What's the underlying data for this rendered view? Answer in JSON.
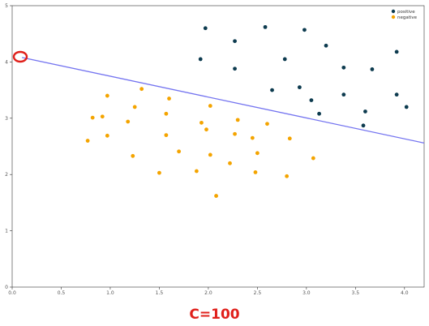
{
  "caption": "C=100",
  "chart_data": {
    "type": "scatter",
    "xlabel": "",
    "ylabel": "",
    "xlim": [
      0,
      4.2
    ],
    "ylim": [
      0,
      5
    ],
    "xticks": [
      "0.0",
      "0.5",
      "1.0",
      "1.5",
      "2.0",
      "2.5",
      "3.0",
      "3.5",
      "4.0"
    ],
    "yticks": [
      "0",
      "1",
      "2",
      "3",
      "4",
      "5"
    ],
    "legend_position": "top-right",
    "series": [
      {
        "name": "positive",
        "color": "#0d3b4f",
        "points": [
          [
            1.97,
            4.6
          ],
          [
            2.58,
            4.62
          ],
          [
            2.98,
            4.57
          ],
          [
            2.27,
            4.37
          ],
          [
            3.2,
            4.29
          ],
          [
            3.92,
            4.18
          ],
          [
            1.92,
            4.05
          ],
          [
            2.78,
            4.05
          ],
          [
            2.27,
            3.88
          ],
          [
            3.38,
            3.9
          ],
          [
            3.67,
            3.87
          ],
          [
            2.65,
            3.5
          ],
          [
            2.93,
            3.55
          ],
          [
            3.38,
            3.42
          ],
          [
            3.92,
            3.42
          ],
          [
            3.05,
            3.32
          ],
          [
            4.02,
            3.2
          ],
          [
            3.6,
            3.12
          ],
          [
            3.13,
            3.08
          ],
          [
            3.58,
            2.87
          ]
        ]
      },
      {
        "name": "negative",
        "color": "#f4a400",
        "points": [
          [
            1.32,
            3.52
          ],
          [
            0.97,
            3.4
          ],
          [
            1.6,
            3.35
          ],
          [
            1.25,
            3.2
          ],
          [
            2.02,
            3.22
          ],
          [
            0.82,
            3.01
          ],
          [
            0.92,
            3.03
          ],
          [
            1.57,
            3.08
          ],
          [
            1.18,
            2.94
          ],
          [
            1.93,
            2.92
          ],
          [
            2.3,
            2.97
          ],
          [
            2.6,
            2.9
          ],
          [
            1.98,
            2.8
          ],
          [
            2.27,
            2.72
          ],
          [
            2.45,
            2.65
          ],
          [
            0.97,
            2.69
          ],
          [
            1.57,
            2.7
          ],
          [
            0.77,
            2.6
          ],
          [
            2.83,
            2.64
          ],
          [
            1.7,
            2.41
          ],
          [
            2.5,
            2.38
          ],
          [
            2.02,
            2.35
          ],
          [
            1.23,
            2.33
          ],
          [
            3.07,
            2.29
          ],
          [
            2.22,
            2.2
          ],
          [
            1.88,
            2.06
          ],
          [
            1.5,
            2.03
          ],
          [
            2.48,
            2.04
          ],
          [
            2.8,
            1.97
          ],
          [
            2.08,
            1.62
          ]
        ]
      }
    ],
    "decision_boundary": {
      "color": "#7474f0",
      "x": [
        0.1,
        4.2
      ],
      "y": [
        4.08,
        2.56
      ]
    }
  }
}
